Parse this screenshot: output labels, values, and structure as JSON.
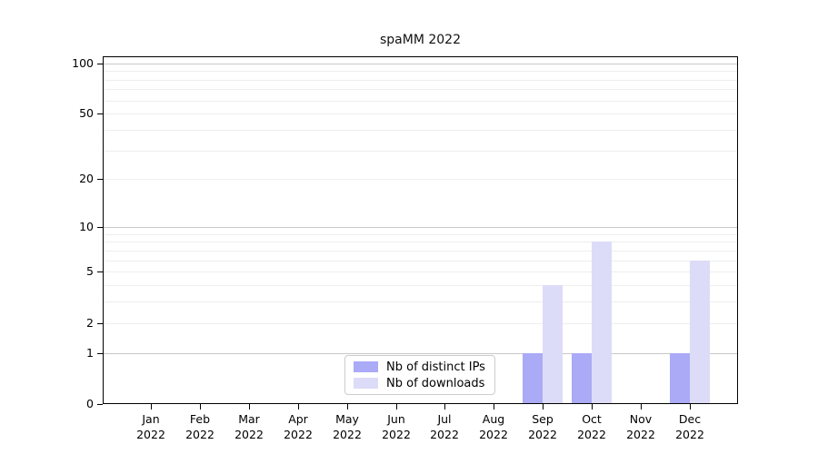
{
  "chart_data": {
    "type": "bar",
    "title": "spaMM 2022",
    "xlabel": "",
    "ylabel": "",
    "categories": [
      "Jan",
      "Feb",
      "Mar",
      "Apr",
      "May",
      "Jun",
      "Jul",
      "Aug",
      "Sep",
      "Oct",
      "Nov",
      "Dec"
    ],
    "year_label": "2022",
    "series": [
      {
        "name": "Nb of distinct IPs",
        "color": "#aaaaf7",
        "values": [
          0,
          0,
          0,
          0,
          0,
          0,
          0,
          0,
          1,
          1,
          0,
          1
        ]
      },
      {
        "name": "Nb of downloads",
        "color": "#dcdcf8",
        "values": [
          0,
          0,
          0,
          0,
          0,
          0,
          0,
          0,
          4,
          8,
          0,
          6
        ]
      }
    ],
    "y_axis": {
      "scale": "log1p",
      "max": 110,
      "tick_labels": [
        0,
        1,
        2,
        5,
        10,
        20,
        50,
        100
      ],
      "major_gridlines": [
        1,
        10,
        100
      ],
      "minor_gridlines": [
        2,
        3,
        4,
        5,
        6,
        7,
        8,
        9,
        20,
        30,
        40,
        50,
        60,
        70,
        80,
        90
      ]
    },
    "ylim": [
      0,
      110
    ],
    "grid": true,
    "legend_position": "lower center",
    "colors": {
      "spine": "#000000",
      "major_grid": "#c8c8c8",
      "minor_grid": "#eeeeee",
      "legend_border": "#cccccc"
    }
  }
}
